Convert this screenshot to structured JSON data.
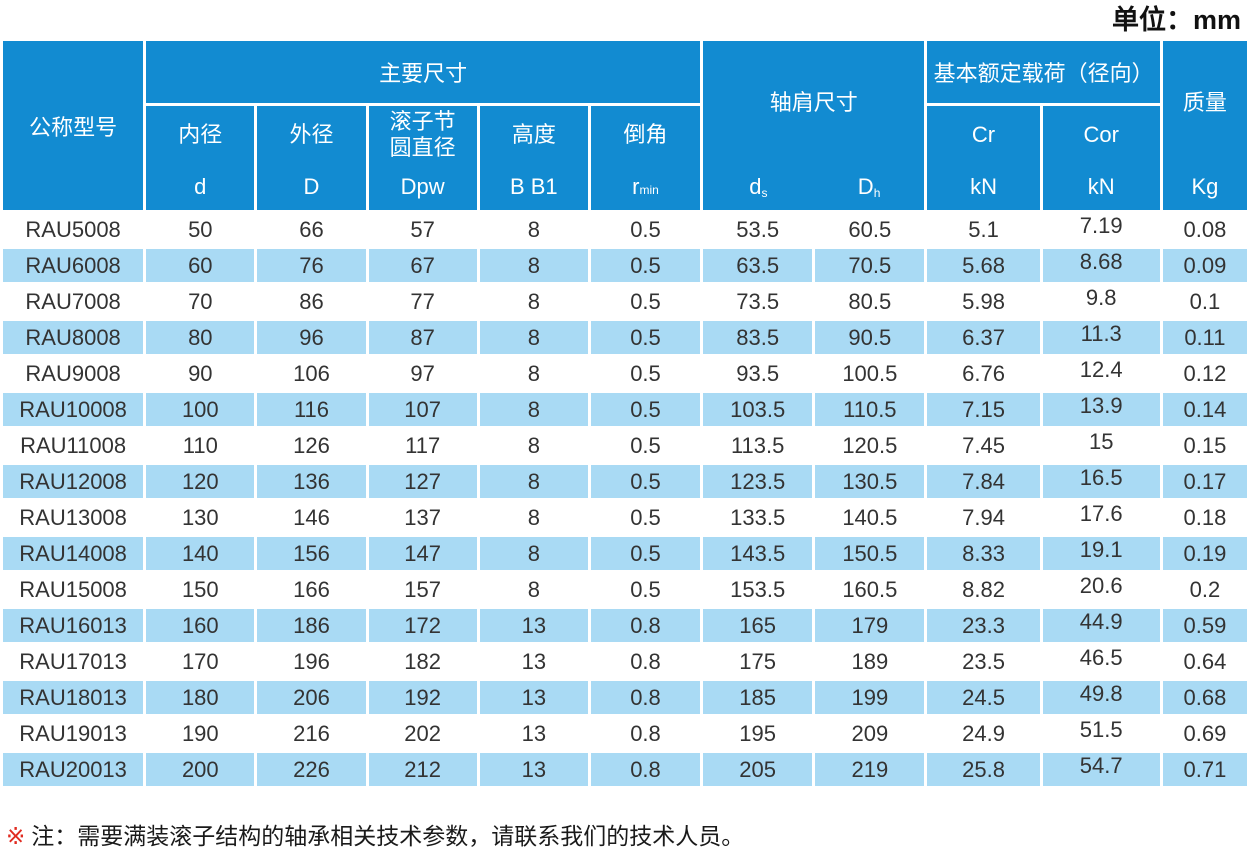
{
  "page": {
    "unit_label": "单位：mm",
    "note_marker": "※",
    "note_text": "注：需要满装滚子结构的轴承相关技术参数，请联系我们的技术人员。"
  },
  "colors": {
    "header_blue": "#128bd1",
    "stripe_blue": "#a9daf4",
    "note_red": "#e02b20",
    "header_text": "#ffffff",
    "body_text": "#333333"
  },
  "table": {
    "header": {
      "model": "公称型号",
      "main_dims_group": "主要尺寸",
      "shoulder_group": "轴肩尺寸",
      "load_group": "基本额定载荷（径向）",
      "mass_label": "质量",
      "mass_unit": "Kg",
      "sub": {
        "inner": {
          "label": "内径",
          "sym": "d"
        },
        "outer": {
          "label": "外径",
          "sym": "D"
        },
        "pitch": {
          "label": "滚子节圆直径",
          "sym": "Dpw"
        },
        "height": {
          "label": "高度",
          "sym": "B B1"
        },
        "chamfer": {
          "label": "倒角",
          "sym": "r",
          "sym_sub": "min"
        },
        "ds": {
          "sym": "d",
          "sub": "s"
        },
        "dh": {
          "sym": "D",
          "sub": "h"
        },
        "cr": {
          "label": "Cr",
          "unit": "kN"
        },
        "cor": {
          "label": "Cor",
          "unit": "kN"
        }
      }
    },
    "rows": [
      [
        "RAU5008",
        "50",
        "66",
        "57",
        "8",
        "0.5",
        "53.5",
        "60.5",
        "5.1",
        "7.19",
        "0.08"
      ],
      [
        "RAU6008",
        "60",
        "76",
        "67",
        "8",
        "0.5",
        "63.5",
        "70.5",
        "5.68",
        "8.68",
        "0.09"
      ],
      [
        "RAU7008",
        "70",
        "86",
        "77",
        "8",
        "0.5",
        "73.5",
        "80.5",
        "5.98",
        "9.8",
        "0.1"
      ],
      [
        "RAU8008",
        "80",
        "96",
        "87",
        "8",
        "0.5",
        "83.5",
        "90.5",
        "6.37",
        "11.3",
        "0.11"
      ],
      [
        "RAU9008",
        "90",
        "106",
        "97",
        "8",
        "0.5",
        "93.5",
        "100.5",
        "6.76",
        "12.4",
        "0.12"
      ],
      [
        "RAU10008",
        "100",
        "116",
        "107",
        "8",
        "0.5",
        "103.5",
        "110.5",
        "7.15",
        "13.9",
        "0.14"
      ],
      [
        "RAU11008",
        "110",
        "126",
        "117",
        "8",
        "0.5",
        "113.5",
        "120.5",
        "7.45",
        "15",
        "0.15"
      ],
      [
        "RAU12008",
        "120",
        "136",
        "127",
        "8",
        "0.5",
        "123.5",
        "130.5",
        "7.84",
        "16.5",
        "0.17"
      ],
      [
        "RAU13008",
        "130",
        "146",
        "137",
        "8",
        "0.5",
        "133.5",
        "140.5",
        "7.94",
        "17.6",
        "0.18"
      ],
      [
        "RAU14008",
        "140",
        "156",
        "147",
        "8",
        "0.5",
        "143.5",
        "150.5",
        "8.33",
        "19.1",
        "0.19"
      ],
      [
        "RAU15008",
        "150",
        "166",
        "157",
        "8",
        "0.5",
        "153.5",
        "160.5",
        "8.82",
        "20.6",
        "0.2"
      ],
      [
        "RAU16013",
        "160",
        "186",
        "172",
        "13",
        "0.8",
        "165",
        "179",
        "23.3",
        "44.9",
        "0.59"
      ],
      [
        "RAU17013",
        "170",
        "196",
        "182",
        "13",
        "0.8",
        "175",
        "189",
        "23.5",
        "46.5",
        "0.64"
      ],
      [
        "RAU18013",
        "180",
        "206",
        "192",
        "13",
        "0.8",
        "185",
        "199",
        "24.5",
        "49.8",
        "0.68"
      ],
      [
        "RAU19013",
        "190",
        "216",
        "202",
        "13",
        "0.8",
        "195",
        "209",
        "24.9",
        "51.5",
        "0.69"
      ],
      [
        "RAU20013",
        "200",
        "226",
        "212",
        "13",
        "0.8",
        "205",
        "219",
        "25.8",
        "54.7",
        "0.71"
      ]
    ]
  }
}
